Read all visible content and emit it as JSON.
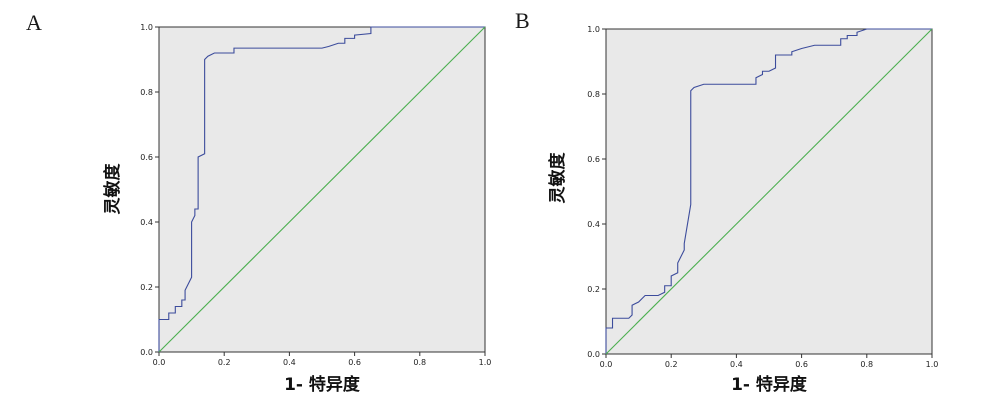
{
  "figure": {
    "panels": [
      "A",
      "B"
    ]
  },
  "chart_data": [
    {
      "type": "line",
      "panel": "A",
      "xlabel": "1- 特异度",
      "ylabel": "灵敏度",
      "xlim": [
        0,
        1
      ],
      "ylim": [
        0,
        1
      ],
      "xticks": [
        "0.0",
        "0.2",
        "0.4",
        "0.6",
        "0.8",
        "1.0"
      ],
      "yticks": [
        "0.0",
        "0.2",
        "0.4",
        "0.6",
        "0.8",
        "1.0"
      ],
      "grid": false,
      "series": [
        {
          "color": "#3c4c9c",
          "x": [
            0,
            0,
            0.03,
            0.03,
            0.05,
            0.05,
            0.07,
            0.07,
            0.08,
            0.08,
            0.1,
            0.1,
            0.11,
            0.11,
            0.12,
            0.12,
            0.14,
            0.14,
            0.15,
            0.17,
            0.17,
            0.23,
            0.23,
            0.5,
            0.52,
            0.55,
            0.57,
            0.57,
            0.6,
            0.6,
            0.65,
            0.65,
            1.0
          ],
          "y": [
            0,
            0.1,
            0.1,
            0.12,
            0.12,
            0.14,
            0.14,
            0.16,
            0.16,
            0.19,
            0.23,
            0.4,
            0.42,
            0.44,
            0.44,
            0.6,
            0.61,
            0.9,
            0.91,
            0.92,
            0.92,
            0.92,
            0.935,
            0.935,
            0.94,
            0.95,
            0.95,
            0.965,
            0.965,
            0.975,
            0.98,
            1.0,
            1.0
          ]
        },
        {
          "color": "#4caf50",
          "x": [
            0,
            1
          ],
          "y": [
            0,
            1
          ]
        }
      ]
    },
    {
      "type": "line",
      "panel": "B",
      "xlabel": "1- 特异度",
      "ylabel": "灵敏度",
      "xlim": [
        0,
        1
      ],
      "ylim": [
        0,
        1
      ],
      "xticks": [
        "0.0",
        "0.2",
        "0.4",
        "0.6",
        "0.8",
        "1.0"
      ],
      "yticks": [
        "0.0",
        "0.2",
        "0.4",
        "0.6",
        "0.8",
        "1.0"
      ],
      "grid": false,
      "series": [
        {
          "color": "#3c4c9c",
          "x": [
            0,
            0,
            0.02,
            0.02,
            0.07,
            0.08,
            0.08,
            0.1,
            0.11,
            0.12,
            0.14,
            0.16,
            0.18,
            0.18,
            0.2,
            0.2,
            0.22,
            0.22,
            0.23,
            0.24,
            0.24,
            0.26,
            0.26,
            0.26,
            0.27,
            0.3,
            0.3,
            0.36,
            0.46,
            0.46,
            0.48,
            0.48,
            0.5,
            0.52,
            0.52,
            0.57,
            0.57,
            0.6,
            0.6,
            0.64,
            0.64,
            0.68,
            0.72,
            0.72,
            0.74,
            0.74,
            0.77,
            0.77,
            0.8,
            1.0
          ],
          "y": [
            0,
            0.08,
            0.08,
            0.11,
            0.11,
            0.12,
            0.15,
            0.16,
            0.17,
            0.18,
            0.18,
            0.18,
            0.19,
            0.21,
            0.21,
            0.24,
            0.25,
            0.28,
            0.3,
            0.32,
            0.34,
            0.46,
            0.49,
            0.81,
            0.82,
            0.83,
            0.83,
            0.83,
            0.83,
            0.85,
            0.86,
            0.87,
            0.87,
            0.88,
            0.92,
            0.92,
            0.93,
            0.94,
            0.94,
            0.95,
            0.95,
            0.95,
            0.95,
            0.97,
            0.97,
            0.98,
            0.98,
            0.99,
            1.0,
            1.0
          ]
        },
        {
          "color": "#4caf50",
          "x": [
            0,
            1
          ],
          "y": [
            0,
            1
          ]
        }
      ]
    }
  ]
}
